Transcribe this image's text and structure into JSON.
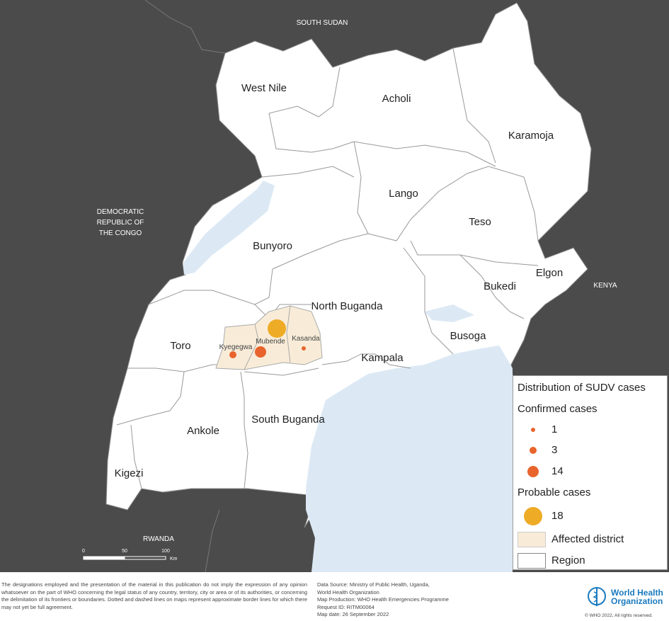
{
  "countries": {
    "south_sudan": "SOUTH SUDAN",
    "drc": [
      "DEMOCRATIC",
      "REPUBLIC OF",
      "THE CONGO"
    ],
    "kenya": "KENYA",
    "rwanda": "RWANDA"
  },
  "regions": [
    "West Nile",
    "Acholi",
    "Karamoja",
    "Lango",
    "Teso",
    "Bunyoro",
    "Elgon",
    "Bukedi",
    "North Buganda",
    "Busoga",
    "Toro",
    "Kampala",
    "South Buganda",
    "Ankole",
    "Kigezi"
  ],
  "districts": [
    "Kyegegwa",
    "Mubende",
    "Kasanda"
  ],
  "cases": {
    "confirmed": [
      {
        "district": "Kyegegwa",
        "count": 3
      },
      {
        "district": "Mubende",
        "count": 14
      },
      {
        "district": "Kasanda",
        "count": 1
      }
    ],
    "probable": [
      {
        "district": "Mubende",
        "count": 18
      }
    ]
  },
  "legend": {
    "title": "Distribution of SUDV cases",
    "confirmed_title": "Confirmed cases",
    "confirmed_values": [
      "1",
      "3",
      "14"
    ],
    "probable_title": "Probable cases",
    "probable_values": [
      "18"
    ],
    "affected": "Affected district",
    "region": "Region"
  },
  "scale": {
    "ticks": [
      "0",
      "50",
      "100"
    ],
    "unit": "Km"
  },
  "colors": {
    "background": "#4b4b4b",
    "land": "#ffffff",
    "water": "#dce9f5",
    "affected": "#f8ecd8",
    "confirmed": "#e8642c",
    "probable": "#eeab26"
  },
  "footer": {
    "disclaimer": "The designations employed and the presentation of the material in this publication do not imply the expression of any opinion whatsoever on the part of WHO concerning the legal status of any country, territory, city or area or of its authorities, or concerning the delimitation of its frontiers or boundaries. Dotted and dashed lines on maps represent approximate border lines for which there may not yet be full agreement.",
    "source": [
      "Data Source: Ministry of Public Health, Uganda,",
      "World Health Organization",
      "Map Production: WHO Health Emergencies Programme",
      "Request ID: RITM00064",
      "Map date: 26 September 2022"
    ],
    "who_name": [
      "World Health",
      "Organization"
    ],
    "copyright": "© WHO 2022, All rights reserved."
  }
}
